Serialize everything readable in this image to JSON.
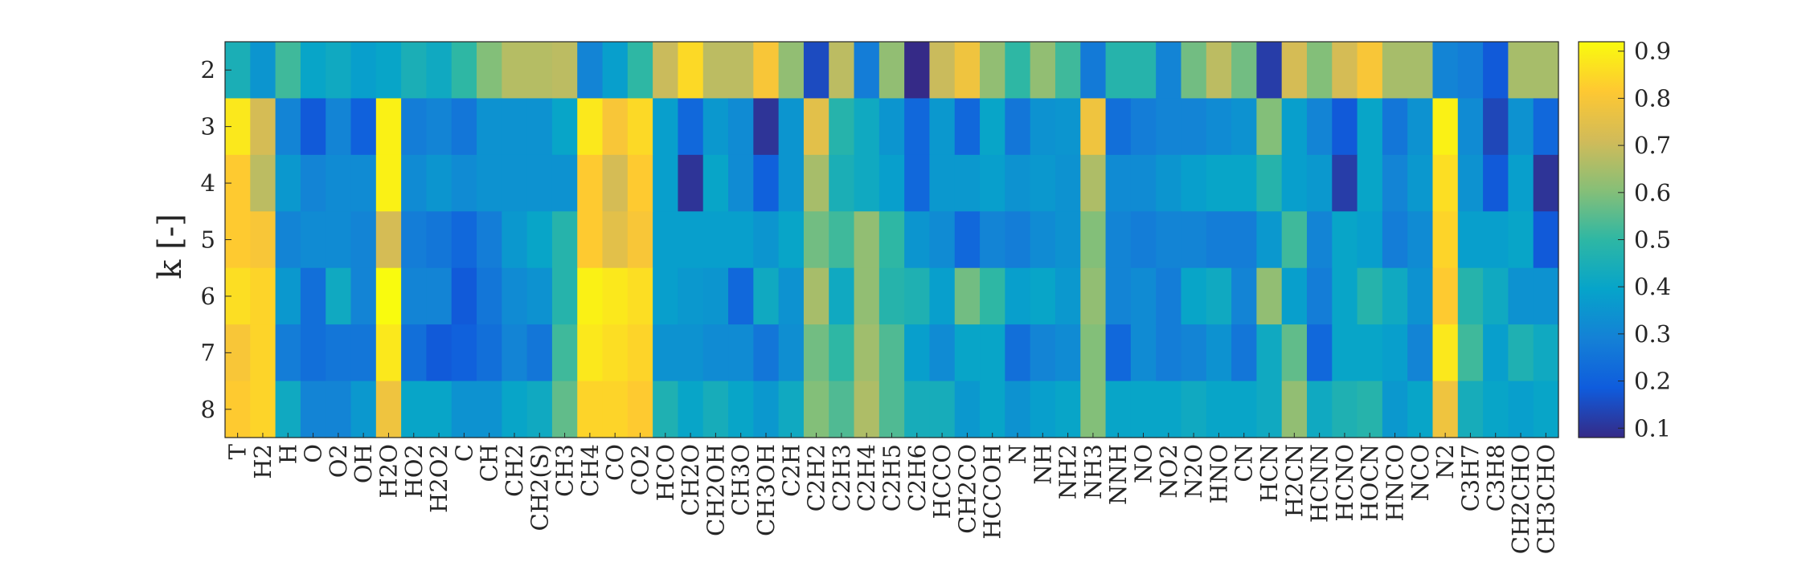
{
  "chart_data": {
    "type": "heatmap",
    "title": "",
    "xlabel": "",
    "ylabel": "k [-]",
    "x_categories": [
      "T",
      "H2",
      "H",
      "O",
      "O2",
      "OH",
      "H2O",
      "HO2",
      "H2O2",
      "C",
      "CH",
      "CH2",
      "CH2(S)",
      "CH3",
      "CH4",
      "CO",
      "CO2",
      "HCO",
      "CH2O",
      "CH2OH",
      "CH3O",
      "CH3OH",
      "C2H",
      "C2H2",
      "C2H3",
      "C2H4",
      "C2H5",
      "C2H6",
      "HCCO",
      "CH2CO",
      "HCCOH",
      "N",
      "NH",
      "NH2",
      "NH3",
      "NNH",
      "NO",
      "NO2",
      "N2O",
      "HNO",
      "CN",
      "HCN",
      "H2CN",
      "HCNN",
      "HCNO",
      "HOCN",
      "HNCO",
      "NCO",
      "N2",
      "C3H7",
      "C3H8",
      "CH2CHO",
      "CH3CHO"
    ],
    "y_categories": [
      "2",
      "3",
      "4",
      "5",
      "6",
      "7",
      "8"
    ],
    "values": [
      [
        0.45,
        0.35,
        0.52,
        0.4,
        0.42,
        0.38,
        0.4,
        0.45,
        0.42,
        0.5,
        0.6,
        0.67,
        0.67,
        0.68,
        0.3,
        0.38,
        0.5,
        0.7,
        0.85,
        0.68,
        0.68,
        0.8,
        0.62,
        0.15,
        0.68,
        0.28,
        0.62,
        0.08,
        0.7,
        0.78,
        0.62,
        0.5,
        0.62,
        0.52,
        0.27,
        0.48,
        0.48,
        0.3,
        0.58,
        0.68,
        0.58,
        0.12,
        0.72,
        0.6,
        0.72,
        0.8,
        0.65,
        0.65,
        0.3,
        0.28,
        0.18,
        0.65,
        0.65
      ],
      [
        0.88,
        0.72,
        0.3,
        0.18,
        0.3,
        0.2,
        0.9,
        0.28,
        0.3,
        0.26,
        0.34,
        0.34,
        0.34,
        0.4,
        0.88,
        0.8,
        0.85,
        0.38,
        0.22,
        0.36,
        0.32,
        0.1,
        0.35,
        0.75,
        0.48,
        0.42,
        0.35,
        0.22,
        0.36,
        0.22,
        0.4,
        0.26,
        0.34,
        0.35,
        0.78,
        0.24,
        0.28,
        0.3,
        0.3,
        0.32,
        0.34,
        0.6,
        0.38,
        0.3,
        0.18,
        0.4,
        0.26,
        0.34,
        0.9,
        0.32,
        0.14,
        0.34,
        0.22
      ],
      [
        0.82,
        0.68,
        0.36,
        0.3,
        0.32,
        0.32,
        0.9,
        0.32,
        0.35,
        0.32,
        0.34,
        0.34,
        0.34,
        0.34,
        0.82,
        0.72,
        0.82,
        0.38,
        0.1,
        0.4,
        0.32,
        0.2,
        0.35,
        0.65,
        0.45,
        0.42,
        0.38,
        0.22,
        0.36,
        0.36,
        0.38,
        0.34,
        0.36,
        0.34,
        0.66,
        0.32,
        0.32,
        0.35,
        0.38,
        0.4,
        0.4,
        0.48,
        0.38,
        0.36,
        0.12,
        0.4,
        0.3,
        0.36,
        0.86,
        0.34,
        0.18,
        0.38,
        0.1
      ],
      [
        0.82,
        0.8,
        0.3,
        0.32,
        0.32,
        0.3,
        0.72,
        0.28,
        0.26,
        0.22,
        0.28,
        0.36,
        0.4,
        0.48,
        0.82,
        0.75,
        0.8,
        0.38,
        0.38,
        0.38,
        0.38,
        0.35,
        0.4,
        0.58,
        0.52,
        0.62,
        0.5,
        0.35,
        0.32,
        0.22,
        0.3,
        0.28,
        0.32,
        0.34,
        0.6,
        0.3,
        0.28,
        0.3,
        0.3,
        0.28,
        0.28,
        0.36,
        0.52,
        0.3,
        0.4,
        0.38,
        0.28,
        0.32,
        0.84,
        0.38,
        0.38,
        0.4,
        0.18
      ],
      [
        0.86,
        0.84,
        0.36,
        0.24,
        0.42,
        0.3,
        0.92,
        0.3,
        0.3,
        0.18,
        0.26,
        0.32,
        0.34,
        0.48,
        0.9,
        0.88,
        0.86,
        0.38,
        0.36,
        0.35,
        0.22,
        0.42,
        0.34,
        0.65,
        0.42,
        0.62,
        0.48,
        0.46,
        0.38,
        0.58,
        0.5,
        0.38,
        0.4,
        0.36,
        0.62,
        0.3,
        0.32,
        0.28,
        0.4,
        0.42,
        0.3,
        0.62,
        0.38,
        0.28,
        0.4,
        0.48,
        0.42,
        0.34,
        0.82,
        0.48,
        0.42,
        0.34,
        0.34
      ],
      [
        0.8,
        0.84,
        0.28,
        0.24,
        0.26,
        0.26,
        0.88,
        0.24,
        0.18,
        0.2,
        0.24,
        0.3,
        0.26,
        0.52,
        0.88,
        0.86,
        0.84,
        0.34,
        0.34,
        0.32,
        0.32,
        0.26,
        0.33,
        0.58,
        0.5,
        0.64,
        0.54,
        0.38,
        0.32,
        0.4,
        0.4,
        0.24,
        0.3,
        0.32,
        0.6,
        0.22,
        0.32,
        0.28,
        0.3,
        0.34,
        0.26,
        0.42,
        0.56,
        0.22,
        0.4,
        0.4,
        0.38,
        0.3,
        0.88,
        0.52,
        0.38,
        0.46,
        0.42
      ],
      [
        0.82,
        0.84,
        0.42,
        0.3,
        0.3,
        0.36,
        0.78,
        0.4,
        0.4,
        0.34,
        0.34,
        0.4,
        0.42,
        0.56,
        0.84,
        0.84,
        0.82,
        0.46,
        0.4,
        0.44,
        0.4,
        0.36,
        0.42,
        0.6,
        0.54,
        0.66,
        0.54,
        0.44,
        0.44,
        0.36,
        0.4,
        0.34,
        0.38,
        0.4,
        0.6,
        0.4,
        0.4,
        0.4,
        0.42,
        0.4,
        0.4,
        0.42,
        0.62,
        0.42,
        0.46,
        0.48,
        0.36,
        0.4,
        0.78,
        0.44,
        0.4,
        0.38,
        0.4
      ]
    ],
    "colormap": "parula",
    "colorbar": {
      "min": 0.08,
      "max": 0.92,
      "ticks": [
        0.9,
        0.8,
        0.7,
        0.6,
        0.5,
        0.4,
        0.3,
        0.2,
        0.1
      ],
      "tick_labels": [
        "0.9",
        "0.8",
        "0.7",
        "0.6",
        "0.5",
        "0.4",
        "0.3",
        "0.2",
        "0.1"
      ]
    },
    "parula_stops": [
      "#352a87",
      "#0f5cdd",
      "#1481d6",
      "#06a4ca",
      "#2eb7a4",
      "#87bf77",
      "#d1bb59",
      "#fec832",
      "#f9fb0e"
    ],
    "grid": false,
    "legend": "none"
  }
}
